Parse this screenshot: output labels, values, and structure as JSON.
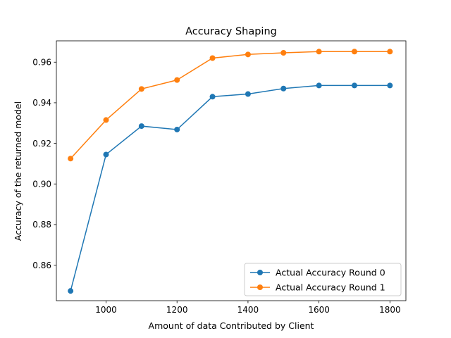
{
  "chart_data": {
    "type": "line",
    "title": "Accuracy Shaping",
    "xlabel": "Amount of data Contributed by Client",
    "ylabel": "Accuracy of the returned model",
    "x": [
      900,
      1000,
      1100,
      1200,
      1300,
      1400,
      1500,
      1600,
      1700,
      1800
    ],
    "xlim": [
      860,
      1845
    ],
    "ylim": [
      0.8425,
      0.9705
    ],
    "xticks": [
      1000,
      1200,
      1400,
      1600,
      1800
    ],
    "yticks": [
      0.86,
      0.88,
      0.9,
      0.92,
      0.94,
      0.96
    ],
    "xtick_labels": [
      "1000",
      "1200",
      "1400",
      "1600",
      "1800"
    ],
    "ytick_labels": [
      "0.86",
      "0.88",
      "0.90",
      "0.92",
      "0.94",
      "0.96"
    ],
    "grid": false,
    "legend_position": "lower-right",
    "series": [
      {
        "name": "Actual Accuracy Round 0",
        "color": "#1f77b4",
        "marker": "circle",
        "values": [
          0.8473,
          0.9145,
          0.9285,
          0.9268,
          0.943,
          0.9443,
          0.947,
          0.9485,
          0.9485,
          0.9485
        ]
      },
      {
        "name": "Actual Accuracy Round 1",
        "color": "#ff7f0e",
        "marker": "circle",
        "values": [
          0.9125,
          0.9315,
          0.9468,
          0.9512,
          0.962,
          0.9638,
          0.9646,
          0.9652,
          0.9652,
          0.9652
        ]
      }
    ]
  }
}
